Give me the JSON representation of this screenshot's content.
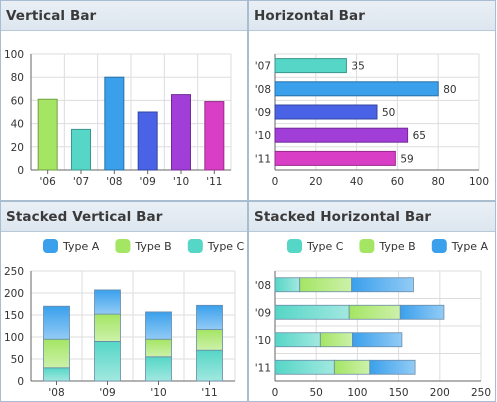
{
  "colors": {
    "type_a": "#3aa0ec",
    "type_b": "#a4e564",
    "type_c": "#55d6c6"
  },
  "panels": [
    {
      "title": "Vertical Bar"
    },
    {
      "title": "Horizontal Bar"
    },
    {
      "title": "Stacked Vertical Bar"
    },
    {
      "title": "Stacked Horizontal Bar"
    }
  ],
  "chart_data": [
    {
      "id": "vbar",
      "type": "bar",
      "orientation": "vertical",
      "categories": [
        "'06",
        "'07",
        "'08",
        "'09",
        "'10",
        "'11"
      ],
      "values": [
        61,
        35,
        80,
        50,
        65,
        59
      ],
      "colors": [
        "#a4e564",
        "#55d6c6",
        "#3aa0ec",
        "#4a63e6",
        "#a13ed8",
        "#d83ec6"
      ],
      "ylim": [
        0,
        100
      ],
      "yticks": [
        0,
        20,
        40,
        60,
        80,
        100
      ],
      "grid": true,
      "legend": "none"
    },
    {
      "id": "hbar",
      "type": "bar",
      "orientation": "horizontal",
      "categories": [
        "'07",
        "'08",
        "'09",
        "'10",
        "'11"
      ],
      "values": [
        35,
        80,
        50,
        65,
        59
      ],
      "value_labels": [
        "35",
        "80",
        "50",
        "65",
        "59"
      ],
      "colors": [
        "#55d6c6",
        "#3aa0ec",
        "#4a63e6",
        "#a13ed8",
        "#d83ec6"
      ],
      "xlim": [
        0,
        100
      ],
      "xticks": [
        0,
        20,
        40,
        60,
        80,
        100
      ],
      "grid": true,
      "legend": "none"
    },
    {
      "id": "svbar",
      "type": "bar",
      "orientation": "vertical",
      "stacked": true,
      "categories": [
        "'08",
        "'09",
        "'10",
        "'11"
      ],
      "series": [
        {
          "name": "Type A",
          "values": [
            75,
            55,
            62,
            55
          ]
        },
        {
          "name": "Type B",
          "values": [
            65,
            62,
            40,
            47
          ]
        },
        {
          "name": "Type C",
          "values": [
            30,
            90,
            55,
            70
          ]
        }
      ],
      "series_colors": [
        "#3aa0ec",
        "#a4e564",
        "#55d6c6"
      ],
      "ylim": [
        0,
        250
      ],
      "yticks": [
        0,
        50,
        100,
        150,
        200,
        250
      ],
      "grid": true,
      "legend": "top"
    },
    {
      "id": "shbar",
      "type": "bar",
      "orientation": "horizontal",
      "stacked": true,
      "categories": [
        "'08",
        "'09",
        "'10",
        "'11"
      ],
      "series": [
        {
          "name": "Type C",
          "values": [
            30,
            90,
            55,
            72
          ]
        },
        {
          "name": "Type B",
          "values": [
            63,
            62,
            39,
            43
          ]
        },
        {
          "name": "Type A",
          "values": [
            75,
            53,
            60,
            55
          ]
        }
      ],
      "series_colors": [
        "#55d6c6",
        "#a4e564",
        "#3aa0ec"
      ],
      "xlim": [
        0,
        250
      ],
      "xticks": [
        0,
        50,
        100,
        150,
        200,
        250
      ],
      "grid": true,
      "legend": "top"
    }
  ],
  "legend": [
    {
      "name": "Type A",
      "color": "#3aa0ec"
    },
    {
      "name": "Type B",
      "color": "#a4e564"
    },
    {
      "name": "Type C",
      "color": "#55d6c6"
    }
  ]
}
